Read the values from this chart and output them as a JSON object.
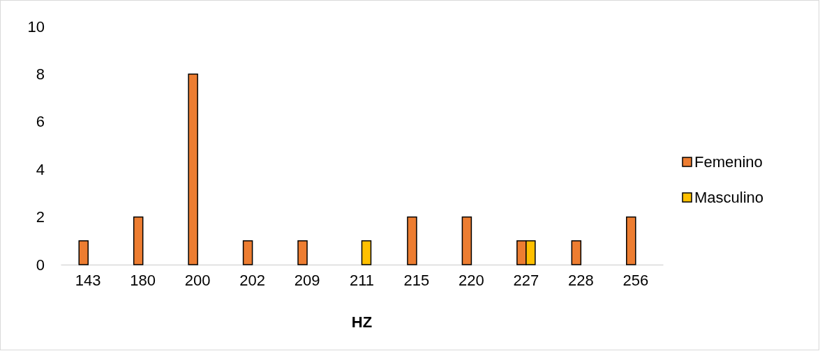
{
  "chart_data": {
    "type": "bar",
    "xlabel": "HZ",
    "categories": [
      "143",
      "180",
      "200",
      "202",
      "209",
      "211",
      "215",
      "220",
      "227",
      "228",
      "256"
    ],
    "series": [
      {
        "name": "Femenino",
        "color": "#ed7d31",
        "values": [
          1,
          2,
          8,
          1,
          1,
          null,
          2,
          2,
          1,
          1,
          2
        ]
      },
      {
        "name": "Masculino",
        "color": "#ffc000",
        "values": [
          null,
          null,
          null,
          null,
          null,
          1,
          null,
          null,
          1,
          null,
          null
        ]
      }
    ],
    "ylim": [
      0,
      10
    ],
    "yticks": [
      0,
      2,
      4,
      6,
      8,
      10
    ],
    "grid": false,
    "legend": "right"
  }
}
